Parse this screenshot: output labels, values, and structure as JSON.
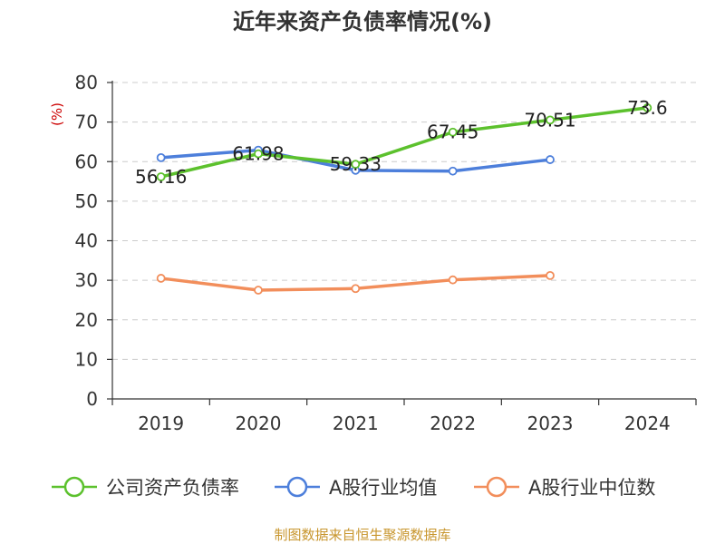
{
  "chart_data": {
    "type": "line",
    "title": "近年来资产负债率情况(%)",
    "ylabel": "(%)",
    "categories": [
      "2019",
      "2020",
      "2021",
      "2022",
      "2023",
      "2024"
    ],
    "ylim": [
      0,
      80
    ],
    "yticks": [
      "0",
      "10",
      "20",
      "30",
      "40",
      "50",
      "60",
      "70",
      "80"
    ],
    "grid": true,
    "legend_position": "bottom",
    "series": [
      {
        "name": "公司资产负债率",
        "color": "#5cc12d",
        "values": [
          56.16,
          61.98,
          59.33,
          67.45,
          70.51,
          73.6
        ],
        "labels": [
          "56.16",
          "61.98",
          "59.33",
          "67.45",
          "70.51",
          "73.6"
        ]
      },
      {
        "name": "A股行业均值",
        "color": "#4d7fdb",
        "values": [
          61.0,
          62.9,
          57.8,
          57.6,
          60.5,
          null
        ]
      },
      {
        "name": "A股行业中位数",
        "color": "#f28e5b",
        "values": [
          30.5,
          27.5,
          27.9,
          30.1,
          31.2,
          null
        ]
      }
    ]
  },
  "footer": {
    "source": "制图数据来自恒生聚源数据库"
  }
}
